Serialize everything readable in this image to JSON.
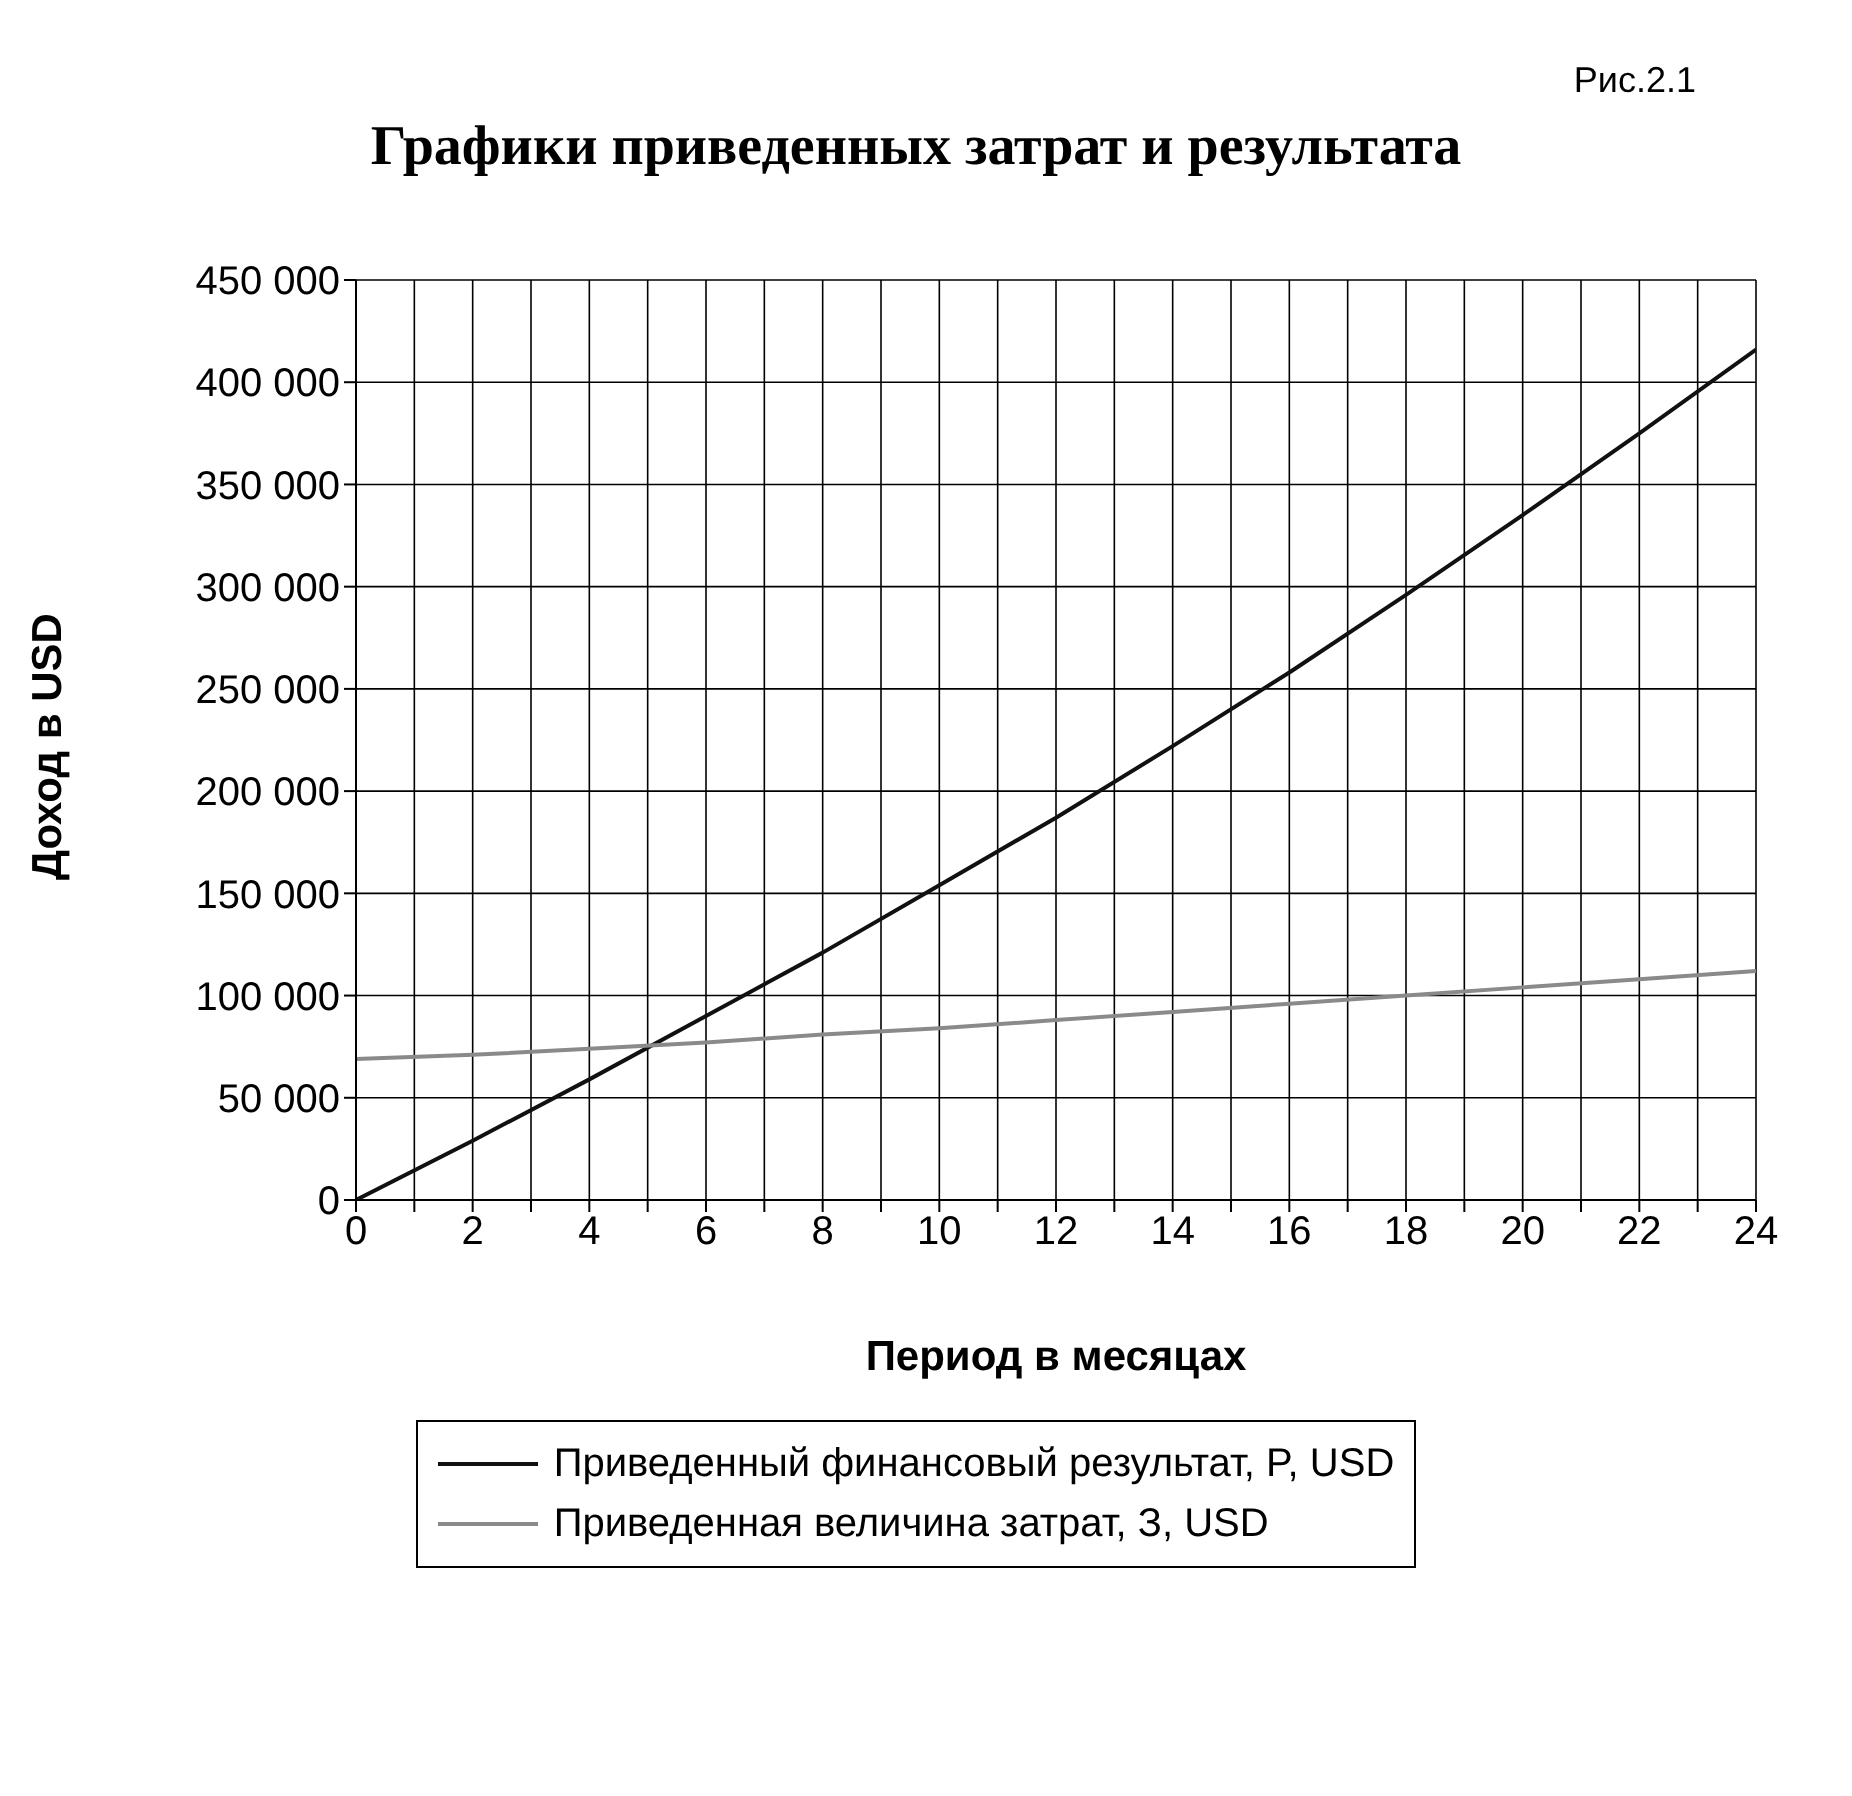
{
  "chart_data": {
    "type": "line",
    "title": "Графики приведенных затрат и  результата",
    "annotations": [
      "Рис.2.1"
    ],
    "xlabel": "Период в месяцах",
    "ylabel": "Доход в USD",
    "x": [
      0,
      2,
      4,
      6,
      8,
      10,
      12,
      14,
      16,
      18,
      20,
      22,
      24
    ],
    "series": [
      {
        "name": "Приведенный финансовый результат, P, USD",
        "color": "#111111",
        "values": [
          0,
          29000,
          59000,
          90000,
          121000,
          154000,
          187000,
          222000,
          258000,
          296000,
          335000,
          375000,
          416000
        ]
      },
      {
        "name": "Приведенная величина затрат, З, USD",
        "color": "#8a8a8a",
        "values": [
          69000,
          71000,
          74000,
          77000,
          81000,
          84000,
          88000,
          92000,
          96000,
          100000,
          104000,
          108000,
          112000
        ]
      }
    ],
    "xlim": [
      0,
      24
    ],
    "xticks": [
      0,
      {
        "value": 1,
        "label": null
      },
      2,
      {
        "value": 3,
        "label": null
      },
      4,
      {
        "value": 5,
        "label": null
      },
      6,
      {
        "value": 7,
        "label": null
      },
      8,
      {
        "value": 9,
        "label": null
      },
      10,
      {
        "value": 11,
        "label": null
      },
      12,
      {
        "value": 13,
        "label": null
      },
      14,
      {
        "value": 15,
        "label": null
      },
      16,
      {
        "value": 17,
        "label": null
      },
      18,
      {
        "value": 19,
        "label": null
      },
      20,
      {
        "value": 21,
        "label": null
      },
      22,
      {
        "value": 23,
        "label": null
      },
      24
    ],
    "ylim": [
      0,
      450000
    ],
    "yticks": [
      0,
      {
        "value": 50000,
        "label": "50 000"
      },
      {
        "value": 100000,
        "label": "100 000"
      },
      {
        "value": 150000,
        "label": "150 000"
      },
      {
        "value": 200000,
        "label": "200 000"
      },
      {
        "value": 250000,
        "label": "250 000"
      },
      {
        "value": 300000,
        "label": "300 000"
      },
      {
        "value": 350000,
        "label": "350 000"
      },
      {
        "value": 400000,
        "label": "400 000"
      },
      {
        "value": 450000,
        "label": "450 000"
      }
    ],
    "grid": true,
    "legend": "bottom",
    "marker": "none",
    "line_style": "solid"
  }
}
